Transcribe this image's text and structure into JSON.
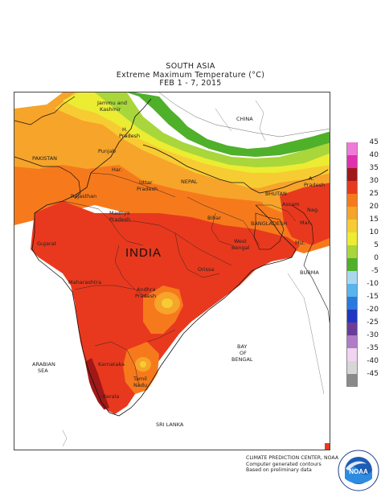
{
  "title": {
    "line1": "SOUTH ASIA",
    "line2": "Extreme Maximum Temperature (°C)",
    "line3": "FEB 1 - 7, 2015"
  },
  "map_labels": {
    "jammu": "Jammu and",
    "kashmir": "Kashmir",
    "himachal1": "H.",
    "himachal2": "Pradesh",
    "punjab": "Punjab",
    "haryana": "Har.",
    "pakistan": "PAKISTAN",
    "rajasthan": "Rajasthan",
    "uttar1": "Uttar",
    "uttar2": "Pradesh",
    "nepal": "NEPAL",
    "china": "CHINA",
    "bhutan": "BHUTAN",
    "arunachal1": "A.",
    "arunachal2": "Pradesh",
    "assam": "Assam",
    "nagaland": "Nag.",
    "manipur": "Man.",
    "mizoram": "Miz.",
    "bihar": "Bihar",
    "bangladesh": "BANGLADESH",
    "west_bengal1": "West",
    "west_bengal2": "Bengal",
    "gujarat": "Gujarat",
    "madhya1": "Madhya",
    "madhya2": "Pradesh",
    "india": "INDIA",
    "orissa": "Orissa",
    "burma": "BURMA",
    "maharashtra": "Maharashtra",
    "andhra1": "Andhra",
    "andhra2": "Pradesh",
    "bay1": "BAY",
    "bay2": "OF",
    "bay3": "BENGAL",
    "arabian1": "ARABIAN",
    "arabian2": "SEA",
    "karnataka": "Karnataka",
    "tamil1": "Tamil",
    "tamil2": "Nadu",
    "kerala": "Kerala",
    "srilanka": "SRI LANKA"
  },
  "legend": [
    {
      "label": "45",
      "color": "#f07ad8"
    },
    {
      "label": "40",
      "color": "#e030b0"
    },
    {
      "label": "35",
      "color": "#a01818"
    },
    {
      "label": "30",
      "color": "#e8391e"
    },
    {
      "label": "25",
      "color": "#f67a1c"
    },
    {
      "label": "20",
      "color": "#f6a42a"
    },
    {
      "label": "15",
      "color": "#f7cc33"
    },
    {
      "label": "10",
      "color": "#ecec32"
    },
    {
      "label": "5",
      "color": "#a9d63b"
    },
    {
      "label": "0",
      "color": "#4fb02a"
    },
    {
      "label": "-5",
      "color": "#a8d8f0"
    },
    {
      "label": "-10",
      "color": "#5ab4ec"
    },
    {
      "label": "-15",
      "color": "#2a78e0"
    },
    {
      "label": "-20",
      "color": "#2036c0"
    },
    {
      "label": "-25",
      "color": "#6a3c98"
    },
    {
      "label": "-30",
      "color": "#b07cc8"
    },
    {
      "label": "-35",
      "color": "#f0d4f0"
    },
    {
      "label": "-40",
      "color": "#d6d6d6"
    },
    {
      "label": "-45",
      "color": "#8a8a8a"
    }
  ],
  "credits": {
    "line1": "CLIMATE PREDICTION CENTER, NOAA",
    "line2": "Computer generated contours",
    "line3": "Based on preliminary data"
  },
  "logo_text": "NOAA"
}
